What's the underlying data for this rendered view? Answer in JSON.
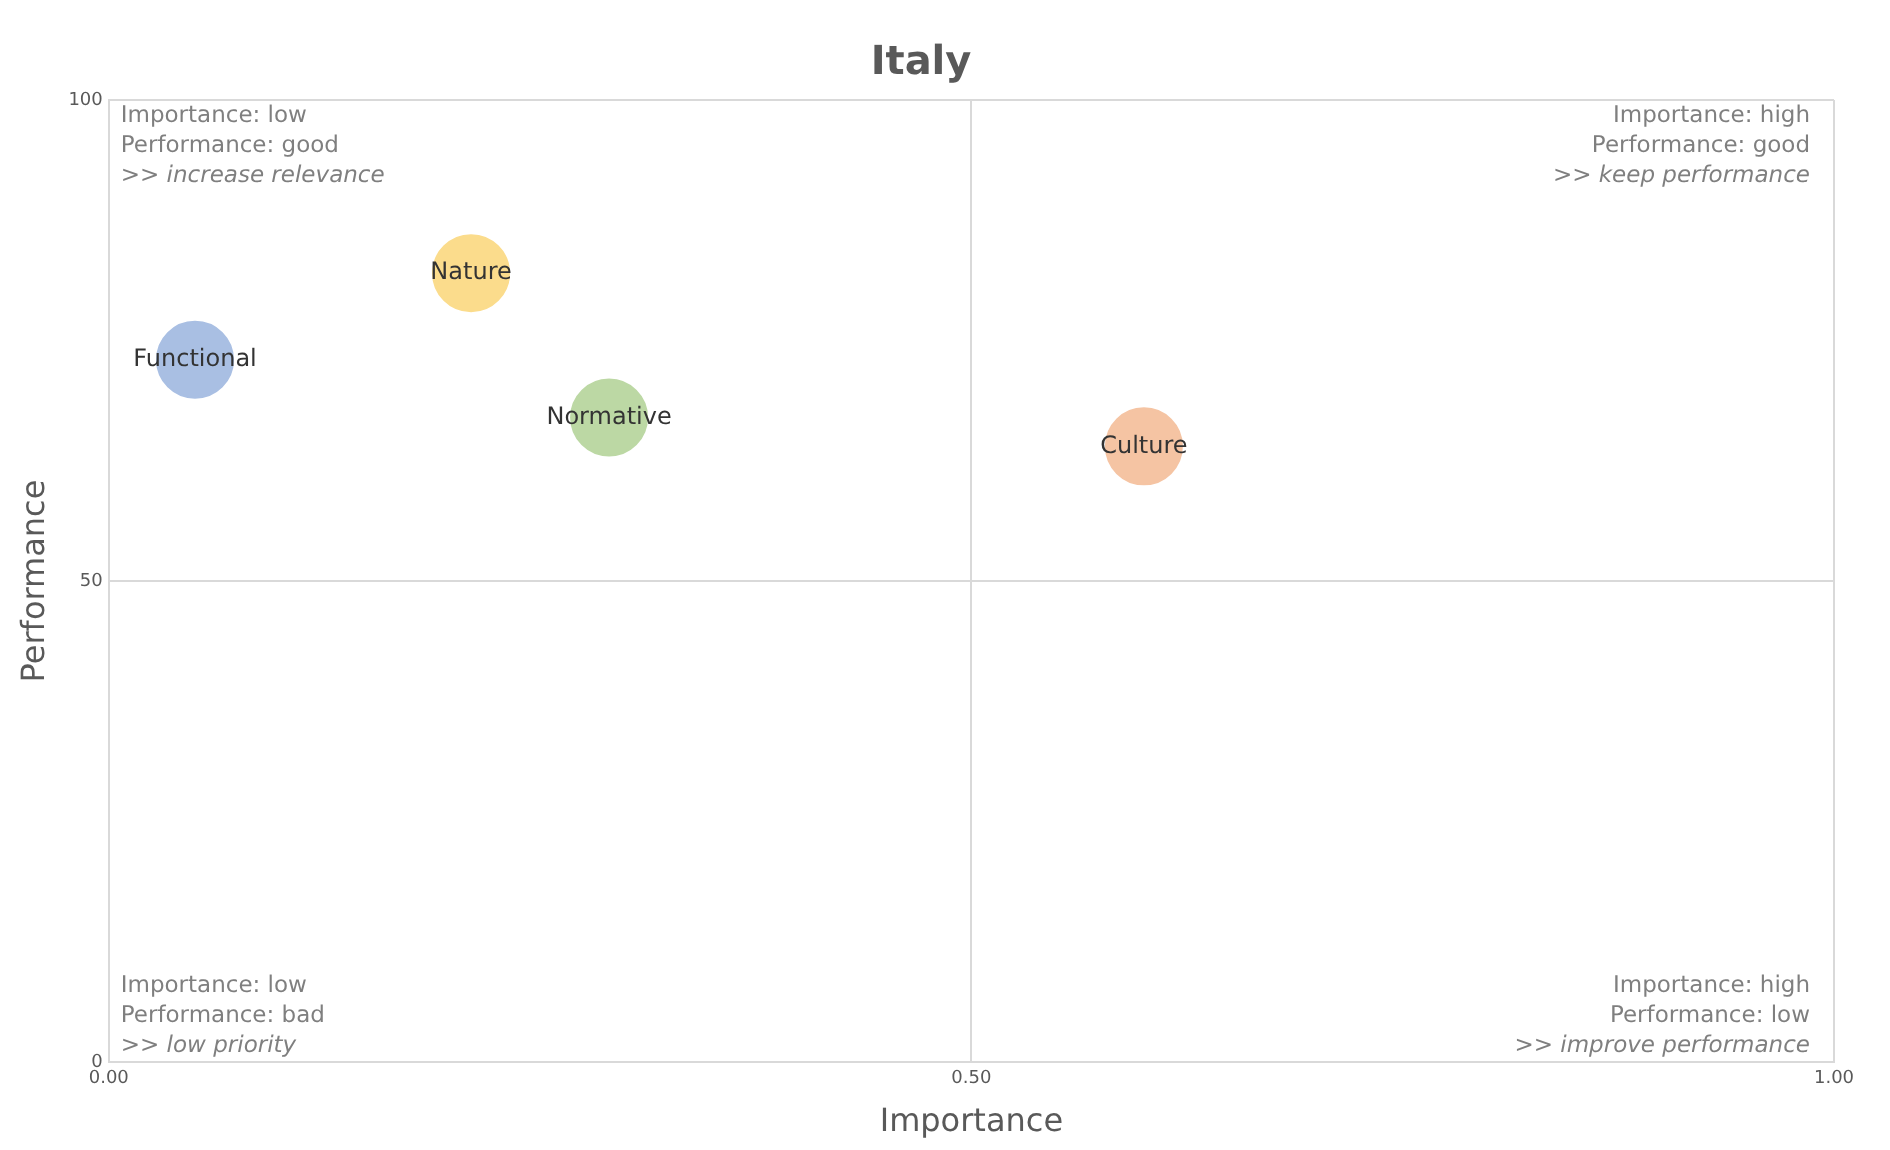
{
  "chart_data": {
    "type": "bubble",
    "title": "Italy",
    "xlabel": "Importance",
    "ylabel": "Performance",
    "series": [
      {
        "name": "Functional",
        "color": "#a9bfe3",
        "x": [
          0.05
        ],
        "values": [
          73
        ],
        "sizes": [
          1
        ]
      },
      {
        "name": "Nature",
        "color": "#fbdc8c",
        "x": [
          0.21
        ],
        "values": [
          82
        ],
        "sizes": [
          1
        ]
      },
      {
        "name": "Normative",
        "color": "#bcd8a4",
        "x": [
          0.29
        ],
        "values": [
          67
        ],
        "sizes": [
          1
        ]
      },
      {
        "name": "Culture",
        "color": "#f5c4a3",
        "x": [
          0.6
        ],
        "values": [
          64
        ],
        "sizes": [
          1
        ]
      }
    ],
    "xlim": [
      0,
      1
    ],
    "xticks": [
      {
        "value": 0,
        "label": "0.00"
      },
      {
        "value": 0.5,
        "label": "0.50"
      },
      {
        "value": 1,
        "label": "1.00"
      }
    ],
    "ylim": [
      0,
      100
    ],
    "yticks": [
      0,
      50,
      100
    ],
    "grid": true,
    "legend": false,
    "annotations": [
      "Importance: low",
      "Performance: good",
      ">> increase relevance",
      "Importance: high",
      "Performance: good",
      ">> keep performance",
      "Importance: low",
      "Performance: bad",
      ">> low priority",
      "Importance: high",
      "Performance: low",
      ">> improve performance"
    ]
  }
}
